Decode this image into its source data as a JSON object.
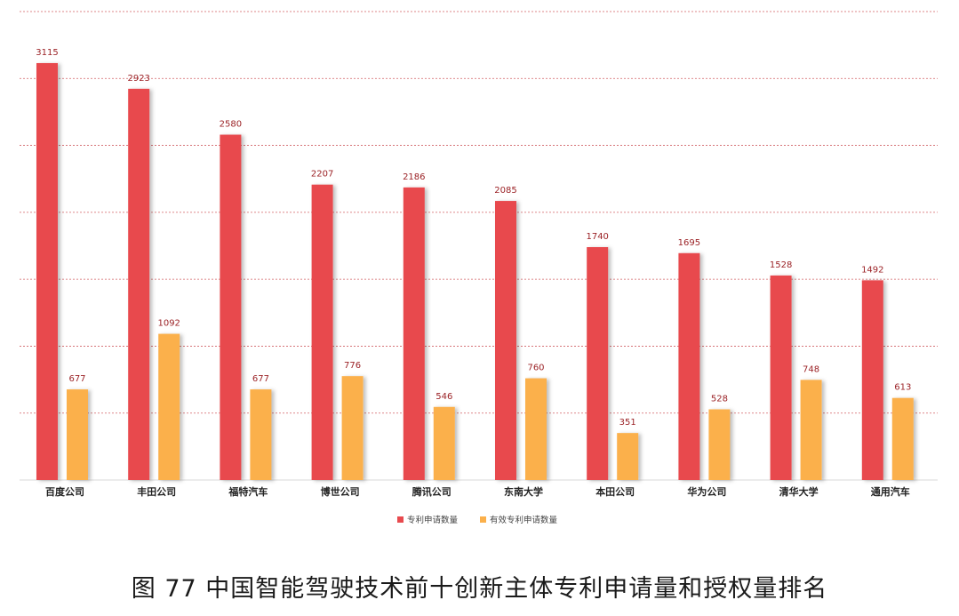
{
  "chart_data": {
    "type": "bar",
    "categories": [
      "百度公司",
      "丰田公司",
      "福特汽车",
      "博世公司",
      "腾讯公司",
      "东南大学",
      "本田公司",
      "华为公司",
      "清华大学",
      "通用汽车"
    ],
    "series": [
      {
        "name": "专利申请数量",
        "values": [
          3115,
          2923,
          2580,
          2207,
          2186,
          2085,
          1740,
          1695,
          1528,
          1492
        ],
        "color": "#e84a4e"
      },
      {
        "name": "有效专利申请数量",
        "values": [
          677,
          1092,
          677,
          776,
          546,
          760,
          351,
          528,
          748,
          613
        ],
        "color": "#fbb04b"
      }
    ],
    "ylim": [
      0,
      3500
    ],
    "grid": true,
    "grid_color": "#c9454a",
    "legend_position": "bottom-center",
    "data_labels": true
  },
  "caption": "图 77 中国智能驾驶技术前十创新主体专利申请量和授权量排名"
}
